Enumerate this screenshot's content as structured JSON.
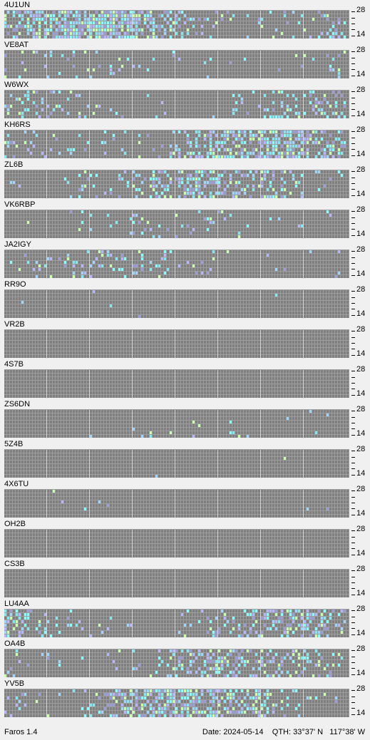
{
  "app": {
    "name": "Faros 1.4"
  },
  "status": {
    "date_label": "Date:",
    "date": "2024-05-14",
    "qth_label": "QTH:",
    "lat": "33°37' N",
    "lon": "117°38' W"
  },
  "band_labels": {
    "top": "28",
    "bottom": "14"
  },
  "colors": {
    "grid": "#7f7f7f",
    "cell_divider": "#9e9e9e",
    "hour_line": "#d6d6d6",
    "signal_levels": [
      "#9b9bd9",
      "#80e8f0",
      "#9cd6ff",
      "#84ffff",
      "#c8ffaa",
      "#b4b4ff",
      "#909090"
    ]
  },
  "stations": [
    {
      "callsign": "4U1UN",
      "activity": 0.62
    },
    {
      "callsign": "VE8AT",
      "activity": 0.1
    },
    {
      "callsign": "W6WX",
      "activity": 0.22
    },
    {
      "callsign": "KH6RS",
      "activity": 0.5
    },
    {
      "callsign": "ZL6B",
      "activity": 0.3
    },
    {
      "callsign": "VK6RBP",
      "activity": 0.1
    },
    {
      "callsign": "JA2IGY",
      "activity": 0.14
    },
    {
      "callsign": "RR9O",
      "activity": 0.01
    },
    {
      "callsign": "VR2B",
      "activity": 0.0
    },
    {
      "callsign": "4S7B",
      "activity": 0.0
    },
    {
      "callsign": "ZS6DN",
      "activity": 0.03
    },
    {
      "callsign": "5Z4B",
      "activity": 0.002
    },
    {
      "callsign": "4X6TU",
      "activity": 0.01
    },
    {
      "callsign": "OH2B",
      "activity": 0.0
    },
    {
      "callsign": "CS3B",
      "activity": 0.0
    },
    {
      "callsign": "LU4AA",
      "activity": 0.3
    },
    {
      "callsign": "OA4B",
      "activity": 0.3
    },
    {
      "callsign": "YV5B",
      "activity": 0.48
    }
  ]
}
